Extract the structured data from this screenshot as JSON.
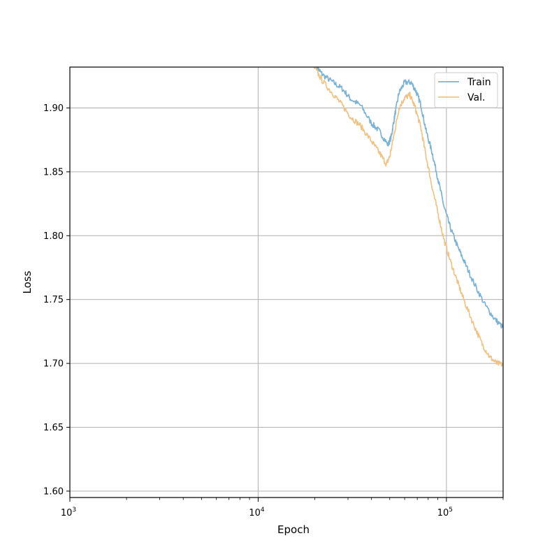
{
  "chart_data": {
    "type": "line",
    "xlabel": "Epoch",
    "ylabel": "Loss",
    "xscale": "log",
    "xlim": [
      1000,
      200000
    ],
    "ylim": [
      1.595,
      1.932
    ],
    "grid": true,
    "legend_position": "top-right",
    "x_ticks": [
      {
        "value": 1000,
        "base": "10",
        "exp": "3"
      },
      {
        "value": 10000,
        "base": "10",
        "exp": "4"
      },
      {
        "value": 100000,
        "base": "10",
        "exp": "5"
      }
    ],
    "y_ticks": [
      {
        "value": 1.6,
        "label": "1.60"
      },
      {
        "value": 1.65,
        "label": "1.65"
      },
      {
        "value": 1.7,
        "label": "1.70"
      },
      {
        "value": 1.75,
        "label": "1.75"
      },
      {
        "value": 1.8,
        "label": "1.80"
      },
      {
        "value": 1.85,
        "label": "1.85"
      },
      {
        "value": 1.9,
        "label": "1.90"
      }
    ],
    "series": [
      {
        "name": "Train",
        "color": "#7ab3d6",
        "points": [
          [
            20500,
            1.932
          ],
          [
            22000,
            1.926
          ],
          [
            25000,
            1.92
          ],
          [
            28000,
            1.915
          ],
          [
            31000,
            1.907
          ],
          [
            35000,
            1.902
          ],
          [
            40000,
            1.888
          ],
          [
            44000,
            1.882
          ],
          [
            49000,
            1.871
          ],
          [
            51000,
            1.878
          ],
          [
            53000,
            1.893
          ],
          [
            56000,
            1.912
          ],
          [
            60000,
            1.92
          ],
          [
            65000,
            1.92
          ],
          [
            69000,
            1.913
          ],
          [
            73000,
            1.903
          ],
          [
            78000,
            1.882
          ],
          [
            84000,
            1.865
          ],
          [
            90000,
            1.845
          ],
          [
            97000,
            1.823
          ],
          [
            105000,
            1.806
          ],
          [
            115000,
            1.791
          ],
          [
            125000,
            1.779
          ],
          [
            140000,
            1.763
          ],
          [
            160000,
            1.746
          ],
          [
            180000,
            1.735
          ],
          [
            200000,
            1.728
          ]
        ]
      },
      {
        "name": "Val.",
        "color": "#f0c283",
        "points": [
          [
            19800,
            1.932
          ],
          [
            22000,
            1.921
          ],
          [
            25000,
            1.911
          ],
          [
            28000,
            1.902
          ],
          [
            31000,
            1.893
          ],
          [
            35000,
            1.886
          ],
          [
            40000,
            1.874
          ],
          [
            44000,
            1.865
          ],
          [
            48000,
            1.856
          ],
          [
            50000,
            1.862
          ],
          [
            53000,
            1.881
          ],
          [
            56000,
            1.9
          ],
          [
            60000,
            1.908
          ],
          [
            64000,
            1.91
          ],
          [
            68000,
            1.901
          ],
          [
            73000,
            1.885
          ],
          [
            78000,
            1.862
          ],
          [
            84000,
            1.838
          ],
          [
            90000,
            1.818
          ],
          [
            97000,
            1.797
          ],
          [
            105000,
            1.78
          ],
          [
            115000,
            1.763
          ],
          [
            125000,
            1.748
          ],
          [
            140000,
            1.73
          ],
          [
            155000,
            1.715
          ],
          [
            170000,
            1.705
          ],
          [
            185000,
            1.7
          ],
          [
            200000,
            1.699
          ]
        ]
      }
    ]
  }
}
